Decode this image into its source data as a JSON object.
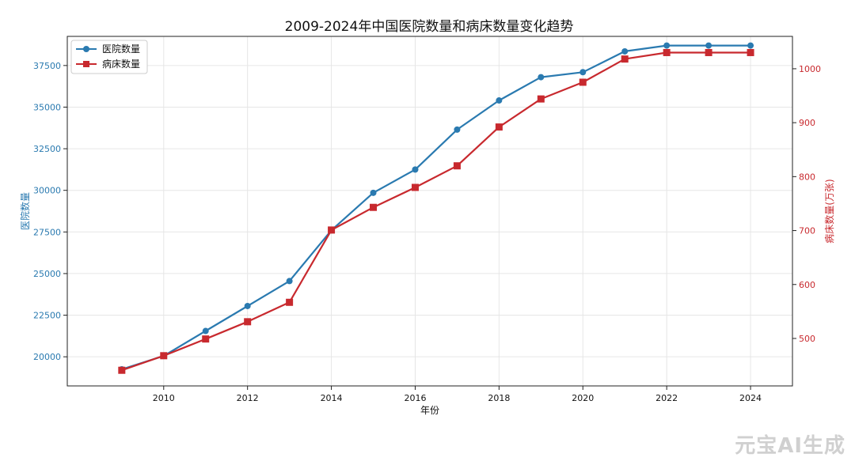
{
  "chart_data": {
    "type": "line",
    "title": "2009-2024年中国医院数量和病床数量变化趋势",
    "xlabel": "年份",
    "ylabel_left": "医院数量",
    "ylabel_right": "病床数量(万张)",
    "x": [
      2009,
      2010,
      2011,
      2012,
      2013,
      2014,
      2015,
      2016,
      2017,
      2018,
      2019,
      2020,
      2021,
      2022,
      2023,
      2024
    ],
    "x_ticks": [
      2010,
      2012,
      2014,
      2016,
      2018,
      2020,
      2022,
      2024
    ],
    "xlim": [
      2007.7,
      2025.0
    ],
    "grid": true,
    "legend_position": "top-left",
    "left_axis": {
      "ylim": [
        18250,
        39250
      ],
      "ticks": [
        20000,
        22500,
        25000,
        27500,
        30000,
        32500,
        35000,
        37500
      ],
      "color": "#2a7ab0"
    },
    "right_axis": {
      "ylim": [
        412,
        1060
      ],
      "ticks": [
        500,
        600,
        700,
        800,
        900,
        1000
      ],
      "color": "#c8292e"
    },
    "series": [
      {
        "name": "医院数量",
        "axis": "left",
        "color": "#2a7ab0",
        "marker": "circle",
        "values": [
          19250,
          20050,
          21550,
          23050,
          24550,
          27600,
          29850,
          31250,
          33650,
          35400,
          36800,
          37100,
          38350,
          38700,
          38700,
          38700
        ]
      },
      {
        "name": "病床数量",
        "axis": "right",
        "color": "#c8292e",
        "marker": "square",
        "values": [
          441,
          468,
          499,
          531,
          567,
          701,
          743,
          780,
          820,
          892,
          944,
          975,
          1018,
          1030,
          1030,
          1030
        ]
      }
    ]
  },
  "watermark": "元宝AI生成"
}
